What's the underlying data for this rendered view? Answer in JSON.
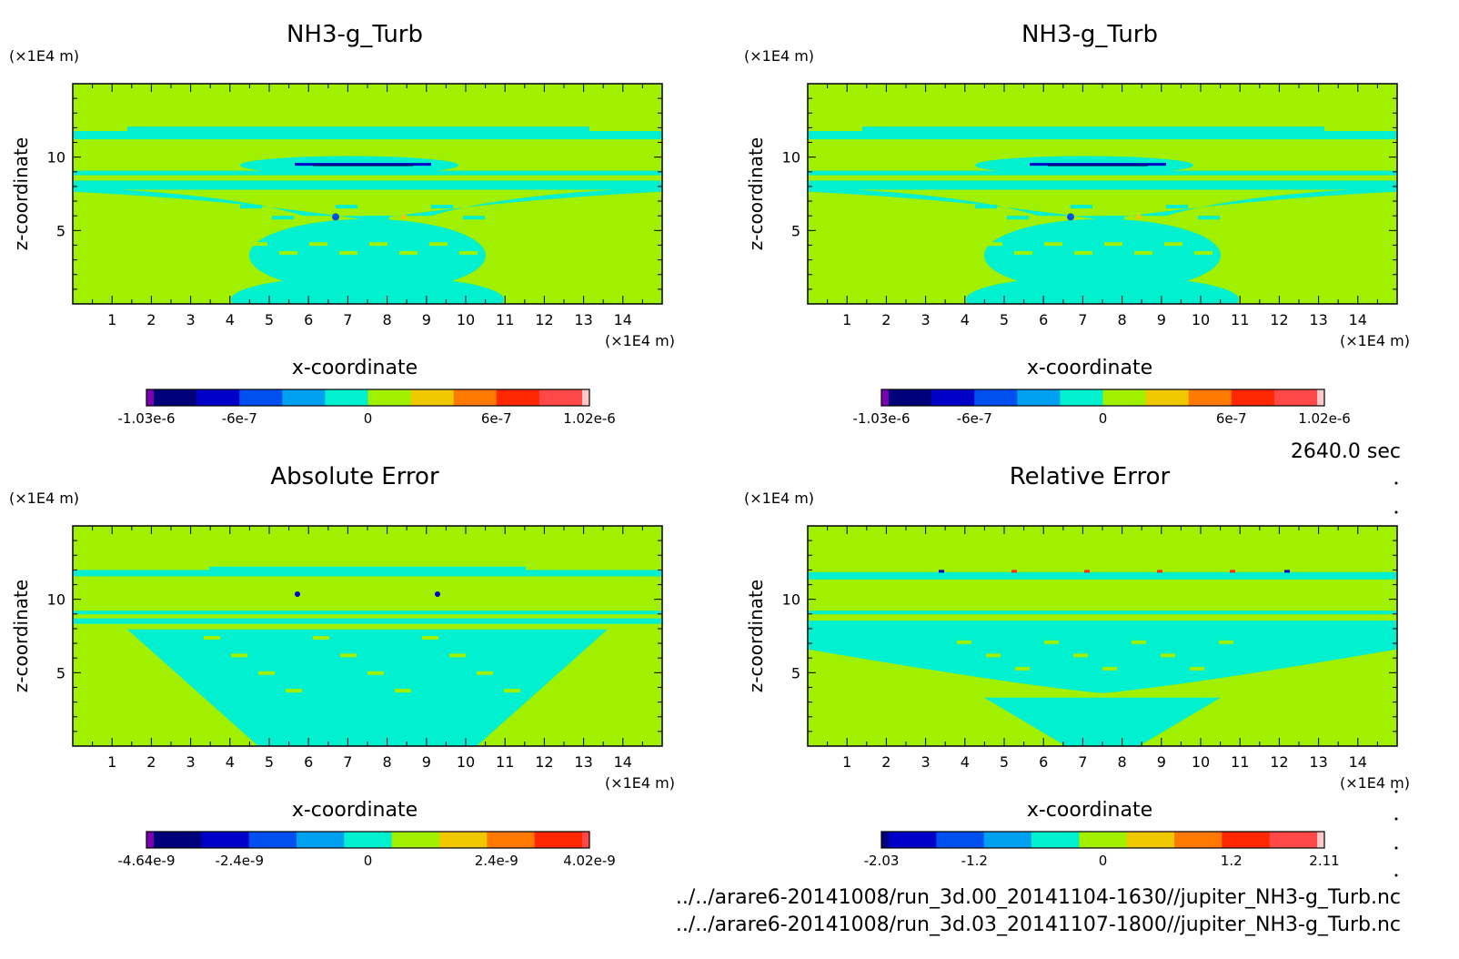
{
  "time_label": "2640.0 sec",
  "files": [
    "../../arare6-20141008/run_3d.00_20141104-1630//jupiter_NH3-g_Turb.nc",
    "../../arare6-20141008/run_3d.03_20141107-1800//jupiter_NH3-g_Turb.nc"
  ],
  "chart_data": [
    {
      "type": "heatmap",
      "title": "NH3-g_Turb",
      "xlabel": "x-coordinate",
      "ylabel": "z-coordinate",
      "x_unit": "(×1E4 m)",
      "y_unit": "(×1E4 m)",
      "xlim": [
        0,
        15
      ],
      "ylim": [
        0,
        15
      ],
      "x_ticks": [
        1,
        2,
        3,
        4,
        5,
        6,
        7,
        8,
        9,
        10,
        11,
        12,
        13,
        14
      ],
      "y_ticks": [
        5,
        10
      ],
      "colorbar": {
        "colors": [
          "#7a00b0",
          "#00007a",
          "#0000c8",
          "#0050f0",
          "#00a0f0",
          "#00f0d0",
          "#a0f000",
          "#f0c800",
          "#ff7800",
          "#ff2800",
          "#ff4848",
          "#ffc8c8"
        ],
        "edge_labels": [
          "-1.03e-6",
          "-6e-7",
          "0",
          "6e-7",
          "1.02e-6"
        ]
      }
    },
    {
      "type": "heatmap",
      "title": "NH3-g_Turb",
      "xlabel": "x-coordinate",
      "ylabel": "z-coordinate",
      "x_unit": "(×1E4 m)",
      "y_unit": "(×1E4 m)",
      "xlim": [
        0,
        15
      ],
      "ylim": [
        0,
        15
      ],
      "x_ticks": [
        1,
        2,
        3,
        4,
        5,
        6,
        7,
        8,
        9,
        10,
        11,
        12,
        13,
        14
      ],
      "y_ticks": [
        5,
        10
      ],
      "colorbar": {
        "colors": [
          "#7a00b0",
          "#00007a",
          "#0000c8",
          "#0050f0",
          "#00a0f0",
          "#00f0d0",
          "#a0f000",
          "#f0c800",
          "#ff7800",
          "#ff2800",
          "#ff4848",
          "#ffc8c8"
        ],
        "edge_labels": [
          "-1.03e-6",
          "-6e-7",
          "0",
          "6e-7",
          "1.02e-6"
        ]
      }
    },
    {
      "type": "heatmap",
      "title": "Absolute Error",
      "xlabel": "x-coordinate",
      "ylabel": "z-coordinate",
      "x_unit": "(×1E4 m)",
      "y_unit": "(×1E4 m)",
      "xlim": [
        0,
        15
      ],
      "ylim": [
        0,
        15
      ],
      "x_ticks": [
        1,
        2,
        3,
        4,
        5,
        6,
        7,
        8,
        9,
        10,
        11,
        12,
        13,
        14
      ],
      "y_ticks": [
        5,
        10
      ],
      "colorbar": {
        "colors": [
          "#7a00b0",
          "#00007a",
          "#0000c8",
          "#0050f0",
          "#00a0f0",
          "#00f0d0",
          "#a0f000",
          "#f0c800",
          "#ff7800",
          "#ff2800",
          "#ff4848"
        ],
        "edge_labels": [
          "-4.64e-9",
          "-2.4e-9",
          "0",
          "2.4e-9",
          "4.02e-9"
        ]
      }
    },
    {
      "type": "heatmap",
      "title": "Relative Error",
      "xlabel": "x-coordinate",
      "ylabel": "z-coordinate",
      "x_unit": "(×1E4 m)",
      "y_unit": "(×1E4 m)",
      "xlim": [
        0,
        15
      ],
      "ylim": [
        0,
        15
      ],
      "x_ticks": [
        1,
        2,
        3,
        4,
        5,
        6,
        7,
        8,
        9,
        10,
        11,
        12,
        13,
        14
      ],
      "y_ticks": [
        5,
        10
      ],
      "colorbar": {
        "colors": [
          "#00007a",
          "#0000c8",
          "#0050f0",
          "#00a0f0",
          "#00f0d0",
          "#a0f000",
          "#f0c800",
          "#ff7800",
          "#ff2800",
          "#ff4848",
          "#ffc8c8"
        ],
        "edge_labels": [
          "-2.03",
          "-1.2",
          "0",
          "1.2",
          "2.11"
        ]
      }
    }
  ]
}
